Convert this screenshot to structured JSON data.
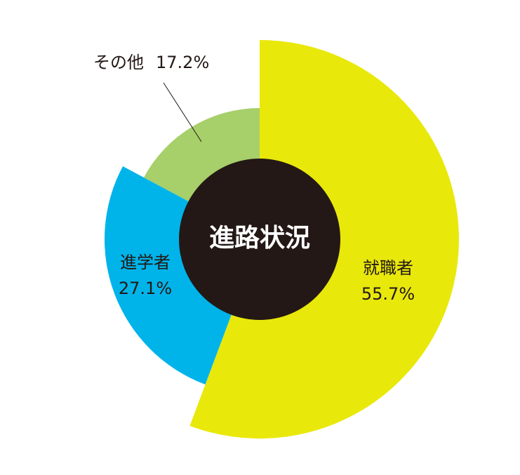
{
  "chart_data": {
    "type": "pie",
    "title": "進路状況",
    "categories": [
      "就職者",
      "進学者",
      "その他"
    ],
    "values": [
      55.7,
      27.1,
      17.2
    ],
    "value_labels": [
      "55.7%",
      "27.1%",
      "17.2%"
    ],
    "colors": [
      "#e9e80b",
      "#00b4ea",
      "#a7cf6a"
    ]
  }
}
